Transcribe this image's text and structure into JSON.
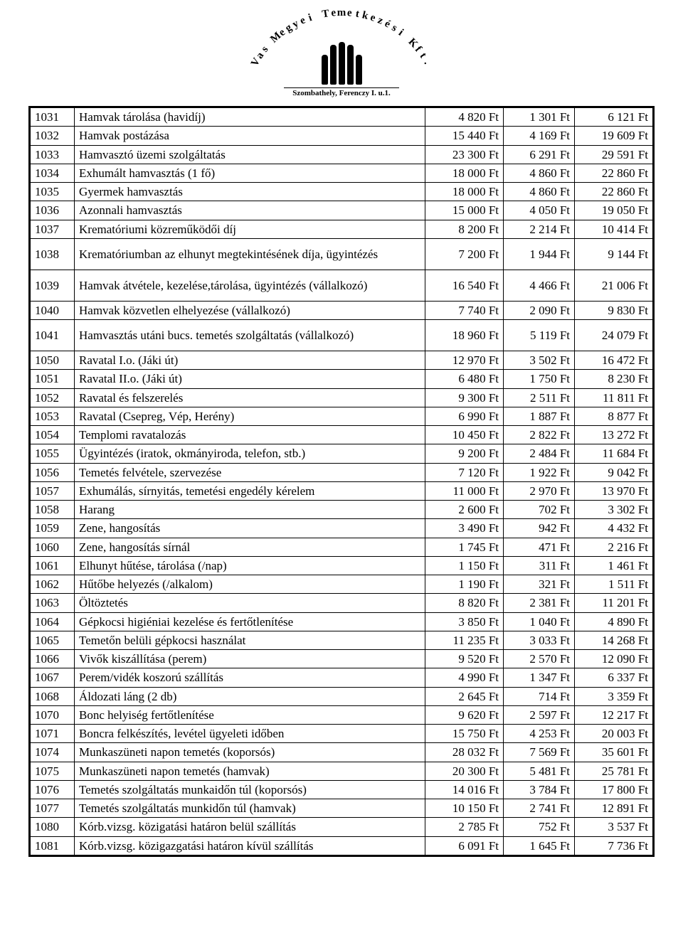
{
  "logo": {
    "arc_text": "Vas Megyei Temetkezési Kft.",
    "subline": "Szombathely, Ferenczy I. u.1."
  },
  "table": {
    "columns": [
      "code",
      "desc",
      "c1",
      "c2",
      "c3"
    ],
    "col_align": [
      "left",
      "left",
      "right",
      "right",
      "right"
    ],
    "rows": [
      {
        "code": "1031",
        "desc": "Hamvak tárolása (havidíj)",
        "c1": "4 820 Ft",
        "c2": "1 301 Ft",
        "c3": "6 121 Ft"
      },
      {
        "code": "1032",
        "desc": "Hamvak postázása",
        "c1": "15 440 Ft",
        "c2": "4 169 Ft",
        "c3": "19 609 Ft"
      },
      {
        "code": "1033",
        "desc": "Hamvasztó üzemi szolgáltatás",
        "c1": "23 300 Ft",
        "c2": "6 291 Ft",
        "c3": "29 591 Ft"
      },
      {
        "code": "1034",
        "desc": "Exhumált hamvasztás (1 fő)",
        "c1": "18 000 Ft",
        "c2": "4 860 Ft",
        "c3": "22 860 Ft"
      },
      {
        "code": "1035",
        "desc": "Gyermek hamvasztás",
        "c1": "18 000 Ft",
        "c2": "4 860 Ft",
        "c3": "22 860 Ft"
      },
      {
        "code": "1036",
        "desc": "Azonnali hamvasztás",
        "c1": "15 000 Ft",
        "c2": "4 050 Ft",
        "c3": "19 050 Ft"
      },
      {
        "code": "1037",
        "desc": "Krematóriumi közreműködői díj",
        "c1": "8 200 Ft",
        "c2": "2 214 Ft",
        "c3": "10 414 Ft"
      },
      {
        "code": "1038",
        "desc": "Krematóriumban az elhunyt megtekintésének díja, ügyintézés",
        "c1": "7 200 Ft",
        "c2": "1 944 Ft",
        "c3": "9 144 Ft",
        "tall": true
      },
      {
        "code": "1039",
        "desc": "Hamvak átvétele, kezelése,tárolása, ügyintézés (vállalkozó)",
        "c1": "16 540 Ft",
        "c2": "4 466 Ft",
        "c3": "21 006 Ft",
        "tall": true
      },
      {
        "code": "1040",
        "desc": "Hamvak közvetlen elhelyezése (vállalkozó)",
        "c1": "7 740 Ft",
        "c2": "2 090 Ft",
        "c3": "9 830 Ft"
      },
      {
        "code": "1041",
        "desc": "Hamvasztás utáni bucs. temetés szolgáltatás (vállalkozó)",
        "c1": "18 960 Ft",
        "c2": "5 119 Ft",
        "c3": "24 079 Ft",
        "tall": true
      },
      {
        "code": "1050",
        "desc": "Ravatal I.o. (Jáki út)",
        "c1": "12 970 Ft",
        "c2": "3 502 Ft",
        "c3": "16 472 Ft"
      },
      {
        "code": "1051",
        "desc": "Ravatal II.o. (Jáki út)",
        "c1": "6 480 Ft",
        "c2": "1 750 Ft",
        "c3": "8 230 Ft"
      },
      {
        "code": "1052",
        "desc": "Ravatal és felszerelés",
        "c1": "9 300 Ft",
        "c2": "2 511 Ft",
        "c3": "11 811 Ft"
      },
      {
        "code": "1053",
        "desc": "Ravatal (Csepreg, Vép, Herény)",
        "c1": "6 990 Ft",
        "c2": "1 887 Ft",
        "c3": "8 877 Ft"
      },
      {
        "code": "1054",
        "desc": "Templomi ravatalozás",
        "c1": "10 450 Ft",
        "c2": "2 822 Ft",
        "c3": "13 272 Ft"
      },
      {
        "code": "1055",
        "desc": "Ügyintézés (iratok, okmányiroda, telefon, stb.)",
        "c1": "9 200 Ft",
        "c2": "2 484 Ft",
        "c3": "11 684 Ft"
      },
      {
        "code": "1056",
        "desc": "Temetés felvétele, szervezése",
        "c1": "7 120 Ft",
        "c2": "1 922 Ft",
        "c3": "9 042 Ft"
      },
      {
        "code": "1057",
        "desc": "Exhumálás, sírnyitás, temetési engedély kérelem",
        "c1": "11 000 Ft",
        "c2": "2 970 Ft",
        "c3": "13 970 Ft"
      },
      {
        "code": "1058",
        "desc": "Harang",
        "c1": "2 600 Ft",
        "c2": "702 Ft",
        "c3": "3 302 Ft"
      },
      {
        "code": "1059",
        "desc": "Zene, hangosítás",
        "c1": "3 490 Ft",
        "c2": "942 Ft",
        "c3": "4 432 Ft"
      },
      {
        "code": "1060",
        "desc": "Zene, hangosítás sírnál",
        "c1": "1 745 Ft",
        "c2": "471 Ft",
        "c3": "2 216 Ft"
      },
      {
        "code": "1061",
        "desc": "Elhunyt hűtése, tárolása (/nap)",
        "c1": "1 150 Ft",
        "c2": "311 Ft",
        "c3": "1 461 Ft"
      },
      {
        "code": "1062",
        "desc": "Hűtőbe helyezés (/alkalom)",
        "c1": "1 190 Ft",
        "c2": "321 Ft",
        "c3": "1 511 Ft"
      },
      {
        "code": "1063",
        "desc": "Öltöztetés",
        "c1": "8 820 Ft",
        "c2": "2 381 Ft",
        "c3": "11 201 Ft"
      },
      {
        "code": "1064",
        "desc": "Gépkocsi higiéniai kezelése és fertőtlenítése",
        "c1": "3 850 Ft",
        "c2": "1 040 Ft",
        "c3": "4 890 Ft"
      },
      {
        "code": "1065",
        "desc": "Temetőn belüli gépkocsi használat",
        "c1": "11 235 Ft",
        "c2": "3 033 Ft",
        "c3": "14 268 Ft"
      },
      {
        "code": "1066",
        "desc": "Vivők kiszállítása (perem)",
        "c1": "9 520 Ft",
        "c2": "2 570 Ft",
        "c3": "12 090 Ft"
      },
      {
        "code": "1067",
        "desc": "Perem/vidék koszorú szállítás",
        "c1": "4 990 Ft",
        "c2": "1 347 Ft",
        "c3": "6 337 Ft"
      },
      {
        "code": "1068",
        "desc": "Áldozati láng (2 db)",
        "c1": "2 645 Ft",
        "c2": "714 Ft",
        "c3": "3 359 Ft"
      },
      {
        "code": "1070",
        "desc": "Bonc helyiség fertőtlenítése",
        "c1": "9 620 Ft",
        "c2": "2 597 Ft",
        "c3": "12 217 Ft"
      },
      {
        "code": "1071",
        "desc": "Boncra felkészítés, levétel ügyeleti időben",
        "c1": "15 750 Ft",
        "c2": "4 253 Ft",
        "c3": "20 003 Ft"
      },
      {
        "code": "1074",
        "desc": "Munkaszüneti napon temetés (koporsós)",
        "c1": "28 032 Ft",
        "c2": "7 569 Ft",
        "c3": "35 601 Ft"
      },
      {
        "code": "1075",
        "desc": "Munkaszüneti napon temetés (hamvak)",
        "c1": "20 300 Ft",
        "c2": "5 481 Ft",
        "c3": "25 781 Ft"
      },
      {
        "code": "1076",
        "desc": "Temetés szolgáltatás munkaidőn túl (koporsós)",
        "c1": "14 016 Ft",
        "c2": "3 784 Ft",
        "c3": "17 800 Ft"
      },
      {
        "code": "1077",
        "desc": "Temetés szolgáltatás munkidőn túl (hamvak)",
        "c1": "10 150 Ft",
        "c2": "2 741 Ft",
        "c3": "12 891 Ft"
      },
      {
        "code": "1080",
        "desc": "Kórb.vizsg. közigatási határon belül szállítás",
        "c1": "2 785 Ft",
        "c2": "752 Ft",
        "c3": "3 537 Ft"
      },
      {
        "code": "1081",
        "desc": "Kórb.vizsg. közigazgatási határon kívül szállítás",
        "c1": "6 091 Ft",
        "c2": "1 645 Ft",
        "c3": "7 736 Ft"
      }
    ]
  }
}
